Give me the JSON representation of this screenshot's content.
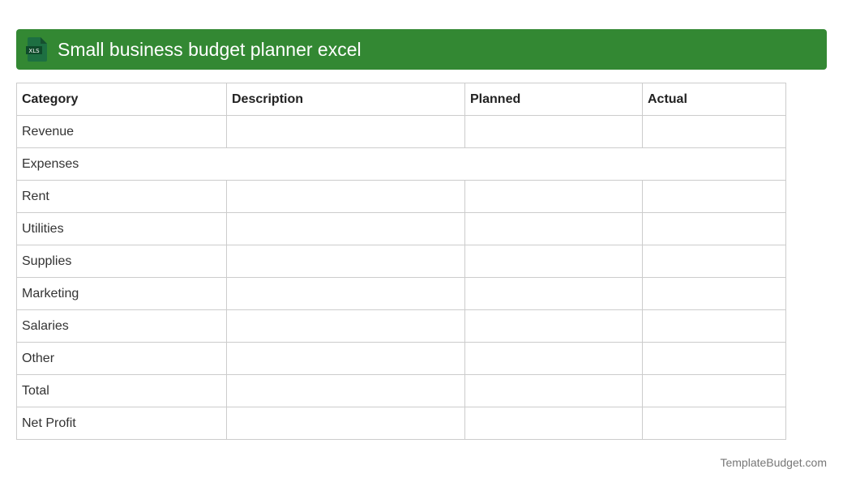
{
  "header": {
    "title": "Small business budget planner excel",
    "icon": "xls-file-icon",
    "icon_label": "XLS"
  },
  "table": {
    "columns": [
      "Category",
      "Description",
      "Planned",
      "Actual"
    ],
    "rows": [
      "Revenue",
      "Expenses",
      "Rent",
      "Utilities",
      "Supplies",
      "Marketing",
      "Salaries",
      "Other",
      "Total",
      "Net Profit"
    ]
  },
  "footer": "TemplateBudget.com"
}
